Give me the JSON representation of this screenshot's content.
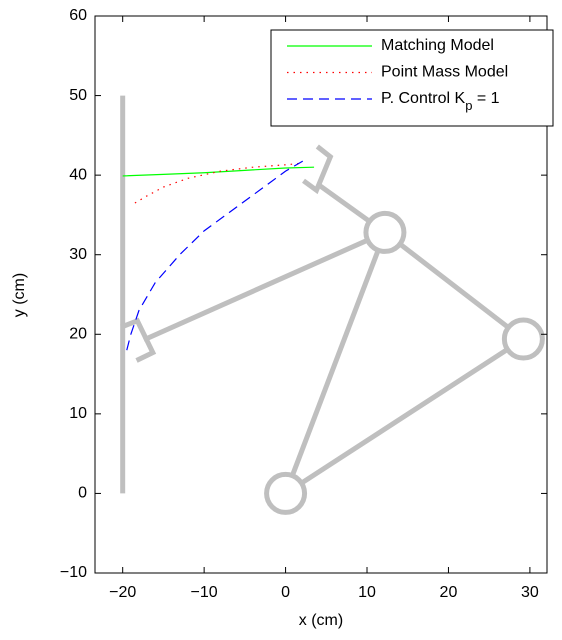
{
  "chart_data": {
    "type": "line",
    "xlabel": "x (cm)",
    "ylabel": "y (cm)",
    "xlim": [
      -23.4,
      32.1
    ],
    "ylim": [
      -10,
      60
    ],
    "xticks": [
      {
        "value": -20,
        "label": "−20"
      },
      {
        "value": -10,
        "label": "−10"
      },
      0,
      10,
      20,
      30
    ],
    "yticks": [
      {
        "value": -10,
        "label": "−10"
      },
      0,
      10,
      20,
      30,
      40,
      50,
      60
    ],
    "legend": "upper right",
    "series": [
      {
        "name": [
          "Matching Model"
        ],
        "color": "#00ff00",
        "style": "solid",
        "x": [
          -20,
          -15,
          -10,
          -5,
          0,
          3.5
        ],
        "y": [
          39.9,
          40.1,
          40.3,
          40.6,
          40.9,
          41.0
        ]
      },
      {
        "name": [
          "Point Mass Model"
        ],
        "color": "#ff0000",
        "style": "dotted",
        "x": [
          -18.5,
          -17,
          -15,
          -12,
          -8,
          -4,
          0,
          2
        ],
        "y": [
          36.5,
          37.4,
          38.5,
          39.6,
          40.5,
          41.0,
          41.3,
          41.5
        ]
      },
      {
        "name": [
          "P. Control K",
          "p",
          " = 1"
        ],
        "color": "#0000ff",
        "style": "dashed",
        "x": [
          -19.5,
          -19,
          -18,
          -16,
          -13,
          -10,
          -6,
          -2,
          0,
          2.5
        ],
        "y": [
          18,
          20,
          23,
          26.5,
          30,
          33,
          36,
          39,
          40.5,
          42
        ]
      }
    ],
    "geometry_color": "#bfbfbf",
    "geometry": [
      {
        "x": [
          -20,
          -20
        ],
        "y": [
          0,
          50
        ]
      },
      {
        "x": [
          0,
          12.2
        ],
        "y": [
          0,
          32.8
        ]
      },
      {
        "x": [
          0,
          29.2
        ],
        "y": [
          0,
          19.4
        ]
      },
      {
        "x": [
          12.2,
          29.2
        ],
        "y": [
          32.8,
          19.4
        ]
      },
      {
        "x": [
          12.2,
          3.9
        ],
        "y": [
          32.8,
          38.9
        ]
      },
      {
        "x": [
          12.2,
          -17.4
        ],
        "y": [
          32.8,
          19.3
        ]
      },
      {
        "x": [
          -20.2,
          -18.2,
          -16.3,
          -18.3
        ],
        "y": [
          20.9,
          21.7,
          17.7,
          16.7
        ]
      },
      {
        "x": [
          2.2,
          3.8,
          5.5,
          3.9
        ],
        "y": [
          39.3,
          38.1,
          42.3,
          43.6
        ]
      }
    ],
    "joints": {
      "x": [
        0,
        12.2,
        29.2
      ],
      "y": [
        0,
        32.8,
        19.4
      ]
    }
  }
}
